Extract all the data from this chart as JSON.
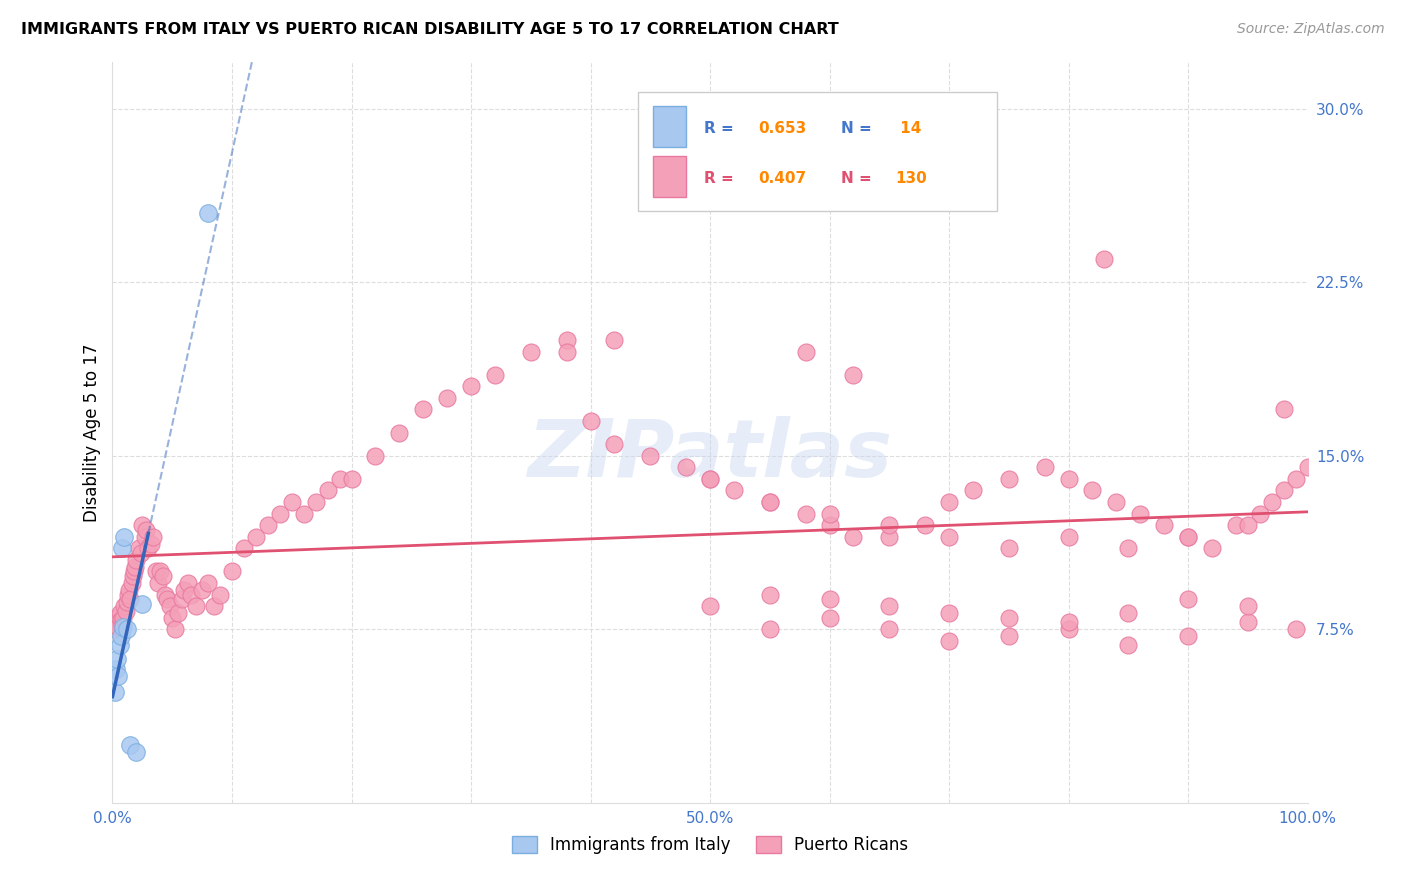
{
  "title": "IMMIGRANTS FROM ITALY VS PUERTO RICAN DISABILITY AGE 5 TO 17 CORRELATION CHART",
  "source": "Source: ZipAtlas.com",
  "ylabel": "Disability Age 5 to 17",
  "xlim": [
    0.0,
    1.0
  ],
  "ylim": [
    0.0,
    0.32
  ],
  "ytick_positions": [
    0.075,
    0.15,
    0.225,
    0.3
  ],
  "ytick_labels": [
    "7.5%",
    "15.0%",
    "22.5%",
    "30.0%"
  ],
  "xtick_positions": [
    0.0,
    0.1,
    0.2,
    0.3,
    0.4,
    0.5,
    0.6,
    0.7,
    0.8,
    0.9,
    1.0
  ],
  "xtick_labels": [
    "0.0%",
    "",
    "",
    "",
    "",
    "50.0%",
    "",
    "",
    "",
    "",
    "100.0%"
  ],
  "italy_color": "#a8c8f0",
  "italy_edge_color": "#7aaee0",
  "pr_color": "#f4a0b8",
  "pr_edge_color": "#e878a0",
  "italy_line_color": "#3366bb",
  "pr_line_color": "#e05070",
  "italy_x": [
    0.002,
    0.003,
    0.004,
    0.005,
    0.006,
    0.007,
    0.008,
    0.009,
    0.01,
    0.012,
    0.015,
    0.02,
    0.025,
    0.08
  ],
  "italy_y": [
    0.048,
    0.058,
    0.062,
    0.055,
    0.068,
    0.072,
    0.11,
    0.076,
    0.115,
    0.075,
    0.025,
    0.022,
    0.086,
    0.255
  ],
  "pr_x": [
    0.002,
    0.003,
    0.004,
    0.005,
    0.006,
    0.007,
    0.008,
    0.009,
    0.01,
    0.011,
    0.012,
    0.013,
    0.014,
    0.015,
    0.016,
    0.017,
    0.018,
    0.019,
    0.02,
    0.022,
    0.024,
    0.025,
    0.027,
    0.028,
    0.03,
    0.032,
    0.034,
    0.036,
    0.038,
    0.04,
    0.042,
    0.044,
    0.046,
    0.048,
    0.05,
    0.052,
    0.055,
    0.058,
    0.06,
    0.063,
    0.066,
    0.07,
    0.075,
    0.08,
    0.085,
    0.09,
    0.1,
    0.11,
    0.12,
    0.13,
    0.14,
    0.15,
    0.16,
    0.17,
    0.18,
    0.19,
    0.2,
    0.22,
    0.24,
    0.26,
    0.28,
    0.3,
    0.32,
    0.35,
    0.38,
    0.4,
    0.42,
    0.45,
    0.48,
    0.5,
    0.52,
    0.55,
    0.58,
    0.6,
    0.62,
    0.65,
    0.68,
    0.7,
    0.72,
    0.75,
    0.78,
    0.8,
    0.82,
    0.84,
    0.86,
    0.88,
    0.9,
    0.92,
    0.94,
    0.96,
    0.97,
    0.98,
    0.99,
    1.0,
    0.83,
    0.42,
    0.58,
    0.38,
    0.62,
    0.5,
    0.55,
    0.6,
    0.65,
    0.7,
    0.75,
    0.8,
    0.85,
    0.9,
    0.95,
    0.98,
    0.55,
    0.6,
    0.65,
    0.7,
    0.75,
    0.8,
    0.85,
    0.9,
    0.95,
    0.99,
    0.5,
    0.55,
    0.6,
    0.65,
    0.7,
    0.75,
    0.8,
    0.85,
    0.9,
    0.95
  ],
  "pr_y": [
    0.075,
    0.08,
    0.078,
    0.076,
    0.082,
    0.079,
    0.077,
    0.08,
    0.085,
    0.083,
    0.087,
    0.09,
    0.092,
    0.088,
    0.095,
    0.098,
    0.1,
    0.102,
    0.105,
    0.11,
    0.108,
    0.12,
    0.115,
    0.118,
    0.11,
    0.112,
    0.115,
    0.1,
    0.095,
    0.1,
    0.098,
    0.09,
    0.088,
    0.085,
    0.08,
    0.075,
    0.082,
    0.088,
    0.092,
    0.095,
    0.09,
    0.085,
    0.092,
    0.095,
    0.085,
    0.09,
    0.1,
    0.11,
    0.115,
    0.12,
    0.125,
    0.13,
    0.125,
    0.13,
    0.135,
    0.14,
    0.14,
    0.15,
    0.16,
    0.17,
    0.175,
    0.18,
    0.185,
    0.195,
    0.2,
    0.165,
    0.155,
    0.15,
    0.145,
    0.14,
    0.135,
    0.13,
    0.125,
    0.12,
    0.115,
    0.115,
    0.12,
    0.13,
    0.135,
    0.14,
    0.145,
    0.14,
    0.135,
    0.13,
    0.125,
    0.12,
    0.115,
    0.11,
    0.12,
    0.125,
    0.13,
    0.135,
    0.14,
    0.145,
    0.235,
    0.2,
    0.195,
    0.195,
    0.185,
    0.14,
    0.13,
    0.125,
    0.12,
    0.115,
    0.11,
    0.115,
    0.11,
    0.115,
    0.12,
    0.17,
    0.075,
    0.08,
    0.075,
    0.07,
    0.072,
    0.075,
    0.068,
    0.072,
    0.078,
    0.075,
    0.085,
    0.09,
    0.088,
    0.085,
    0.082,
    0.08,
    0.078,
    0.082,
    0.088,
    0.085
  ]
}
